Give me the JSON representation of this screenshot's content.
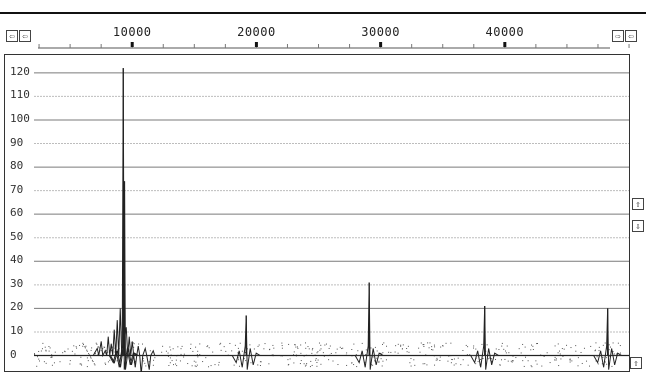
{
  "window": {
    "scroll_left_glyph": "⇦",
    "scroll_right_glyph": "⇨",
    "scroll_up_glyph": "⇧",
    "scroll_down_glyph": "⇩",
    "zoom_in_glyph": "⇧",
    "zoom_out_glyph": "⇩",
    "top_left_b1": "⇦",
    "top_left_b2": "⇦",
    "top_right_b1": "⇨",
    "top_right_b2": "⇦",
    "bottom_left_b1": "⇩",
    "bottom_left_b2": "⇩",
    "bottom_right_b1": "⇧"
  },
  "chart_data": {
    "type": "line",
    "title": "",
    "xlabel": "",
    "ylabel": "",
    "x_ticks": [
      "10000",
      "20000",
      "30000",
      "40000"
    ],
    "x_tick_values": [
      10000,
      20000,
      30000,
      40000
    ],
    "xlim": [
      0,
      50400
    ],
    "y_ticks": [
      "120",
      "110",
      "100",
      "90",
      "80",
      "70",
      "60",
      "50",
      "40",
      "30",
      "20",
      "10",
      "0"
    ],
    "ylim": [
      -7,
      128
    ],
    "grid": true,
    "legend": "none",
    "series": [
      {
        "peaks": [
          {
            "x": 9600,
            "y": 122
          },
          {
            "x": 9700,
            "y": 74
          },
          {
            "x": 19500,
            "y": 17
          },
          {
            "x": 29400,
            "y": 31
          },
          {
            "x": 38700,
            "y": 21
          },
          {
            "x": 48600,
            "y": 20
          }
        ]
      }
    ],
    "colors": {
      "line": "#222222",
      "grid_dark": "#7a7a7a",
      "grid_light": "#bdbdbd",
      "noise": "#555555"
    }
  }
}
